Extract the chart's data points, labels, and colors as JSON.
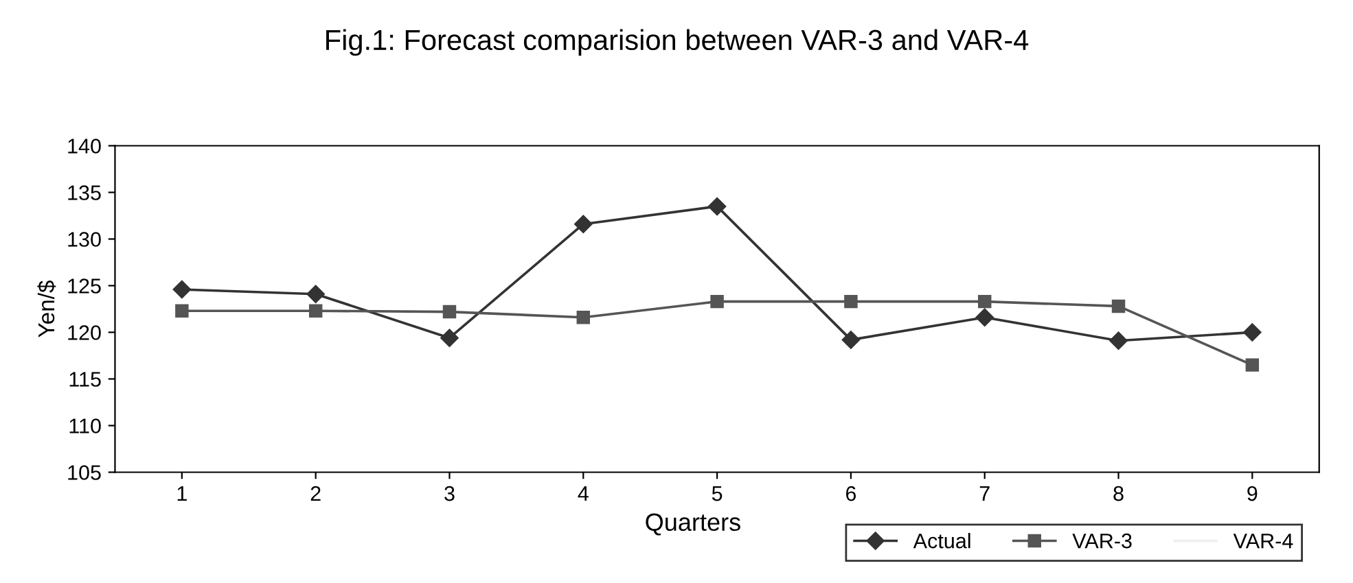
{
  "chart_data": {
    "type": "line",
    "title": "Fig.1: Forecast comparision between VAR-3 and VAR-4",
    "xlabel": "Quarters",
    "ylabel": "Yen/$",
    "categories": [
      "1",
      "2",
      "3",
      "4",
      "5",
      "6",
      "7",
      "8",
      "9"
    ],
    "series": [
      {
        "name": "Actual",
        "color": "#333333",
        "marker": "diamond",
        "values": [
          124.6,
          124.1,
          119.4,
          131.6,
          133.5,
          119.2,
          121.6,
          119.1,
          120.0
        ]
      },
      {
        "name": "VAR-3",
        "color": "#555555",
        "marker": "square",
        "values": [
          122.3,
          122.3,
          122.2,
          121.6,
          123.3,
          123.3,
          123.3,
          122.8,
          116.5
        ]
      },
      {
        "name": "VAR-4",
        "color": "#eeeeee",
        "marker": "none",
        "values": [
          null,
          null,
          null,
          null,
          null,
          null,
          null,
          null,
          null
        ]
      }
    ],
    "ylim": [
      105,
      140
    ],
    "yticks": [
      105,
      110,
      115,
      120,
      125,
      130,
      135,
      140
    ],
    "grid": false,
    "legend": "bottom right"
  }
}
